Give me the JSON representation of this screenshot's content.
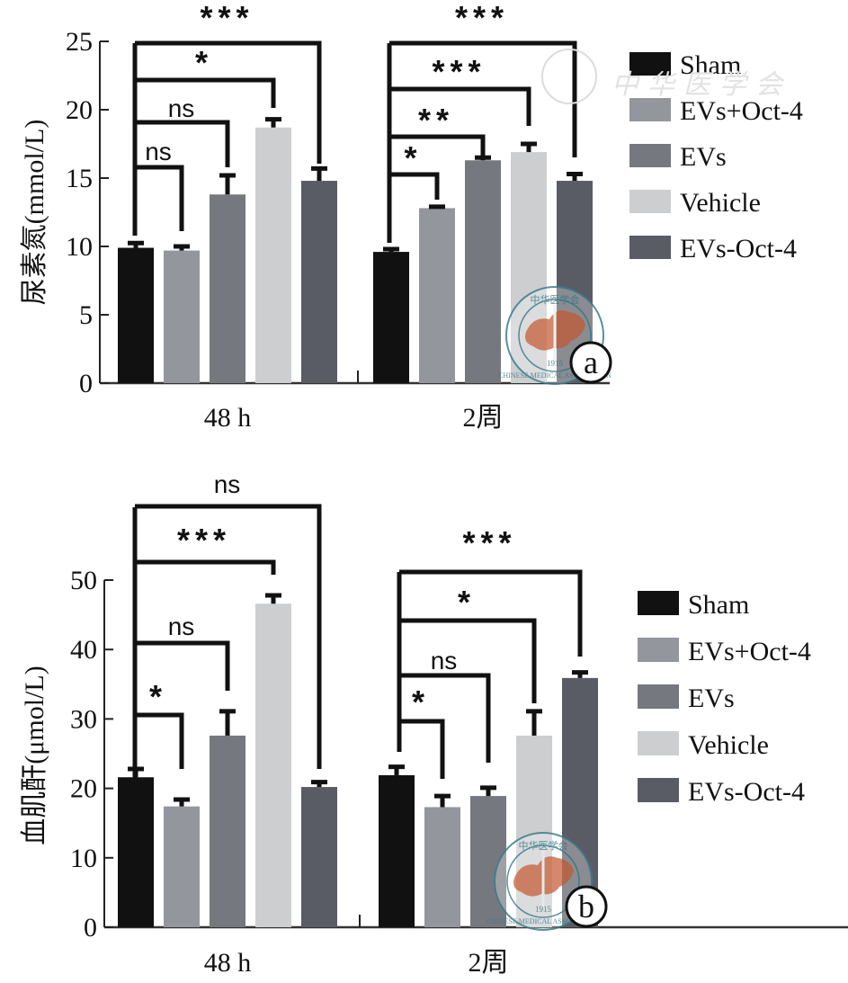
{
  "chart_data": [
    {
      "id": "a",
      "type": "bar",
      "panel_label": "a",
      "title": "",
      "xlabel": "",
      "ylabel": "尿素氮(mmol/L)",
      "ylim": [
        0,
        25
      ],
      "yticks": [
        0,
        5,
        10,
        15,
        20,
        25
      ],
      "grid": false,
      "legend_position": "top-right",
      "categories": [
        "48 h",
        "2周"
      ],
      "series": [
        {
          "name": "Sham",
          "color": "#111111",
          "values": [
            9.9,
            9.6
          ],
          "errors": [
            0.35,
            0.2
          ]
        },
        {
          "name": "EVs+Oct-4",
          "color": "#94969d",
          "values": [
            9.7,
            12.8
          ],
          "errors": [
            0.3,
            0.1
          ]
        },
        {
          "name": "EVs",
          "color": "#767880",
          "values": [
            13.8,
            16.3
          ],
          "errors": [
            1.4,
            0.2
          ]
        },
        {
          "name": "Vehicle",
          "color": "#cdcecf",
          "values": [
            18.7,
            16.9
          ],
          "errors": [
            0.6,
            0.6
          ]
        },
        {
          "name": "EVs-Oct-4",
          "color": "#595c64",
          "values": [
            14.8,
            14.8
          ],
          "errors": [
            0.9,
            0.5
          ]
        }
      ],
      "comparisons": [
        {
          "category": 0,
          "from": "Sham",
          "to": "EVs+Oct-4",
          "label": "ns"
        },
        {
          "category": 0,
          "from": "Sham",
          "to": "EVs",
          "label": "ns"
        },
        {
          "category": 0,
          "from": "Sham",
          "to": "Vehicle",
          "label": "*"
        },
        {
          "category": 0,
          "from": "Sham",
          "to": "EVs-Oct-4",
          "label": "***"
        },
        {
          "category": 1,
          "from": "Sham",
          "to": "EVs+Oct-4",
          "label": "*"
        },
        {
          "category": 1,
          "from": "Sham",
          "to": "EVs",
          "label": "**"
        },
        {
          "category": 1,
          "from": "Sham",
          "to": "Vehicle",
          "label": "***"
        },
        {
          "category": 1,
          "from": "Sham",
          "to": "EVs-Oct-4",
          "label": "***"
        }
      ]
    },
    {
      "id": "b",
      "type": "bar",
      "panel_label": "b",
      "title": "",
      "xlabel": "",
      "ylabel": "血肌酐(μmol/L)",
      "ylim": [
        0,
        50
      ],
      "yticks": [
        0,
        10,
        20,
        30,
        40,
        50
      ],
      "grid": false,
      "legend_position": "right",
      "categories": [
        "48 h",
        "2周"
      ],
      "series": [
        {
          "name": "Sham",
          "color": "#111111",
          "values": [
            21.6,
            21.9
          ],
          "errors": [
            1.2,
            1.2
          ]
        },
        {
          "name": "EVs+Oct-4",
          "color": "#94969d",
          "values": [
            17.4,
            17.3
          ],
          "errors": [
            1.0,
            1.6
          ]
        },
        {
          "name": "EVs",
          "color": "#767880",
          "values": [
            27.6,
            18.9
          ],
          "errors": [
            3.5,
            1.2
          ]
        },
        {
          "name": "Vehicle",
          "color": "#cdcecf",
          "values": [
            46.6,
            27.6
          ],
          "errors": [
            1.2,
            3.5
          ]
        },
        {
          "name": "EVs-Oct-4",
          "color": "#595c64",
          "values": [
            20.2,
            35.9
          ],
          "errors": [
            0.7,
            0.8
          ]
        }
      ],
      "comparisons": [
        {
          "category": 0,
          "from": "Sham",
          "to": "EVs+Oct-4",
          "label": "*"
        },
        {
          "category": 0,
          "from": "Sham",
          "to": "EVs",
          "label": "ns"
        },
        {
          "category": 0,
          "from": "Sham",
          "to": "Vehicle",
          "label": "***"
        },
        {
          "category": 0,
          "from": "Sham",
          "to": "EVs-Oct-4",
          "label": "ns"
        },
        {
          "category": 1,
          "from": "Sham",
          "to": "EVs+Oct-4",
          "label": "*"
        },
        {
          "category": 1,
          "from": "Sham",
          "to": "EVs",
          "label": "ns"
        },
        {
          "category": 1,
          "from": "Sham",
          "to": "Vehicle",
          "label": "*"
        },
        {
          "category": 1,
          "from": "Sham",
          "to": "EVs-Oct-4",
          "label": "***"
        }
      ]
    }
  ],
  "watermark": {
    "stamp_text_top": "中华医学会",
    "stamp_text_bottom": "CHINESE MEDICAL ASSOCIATION",
    "stamp_year": "1915",
    "stamp_color": "#3d7d8c",
    "map_color": "#c9643e",
    "faint_text": "中华医学会"
  }
}
